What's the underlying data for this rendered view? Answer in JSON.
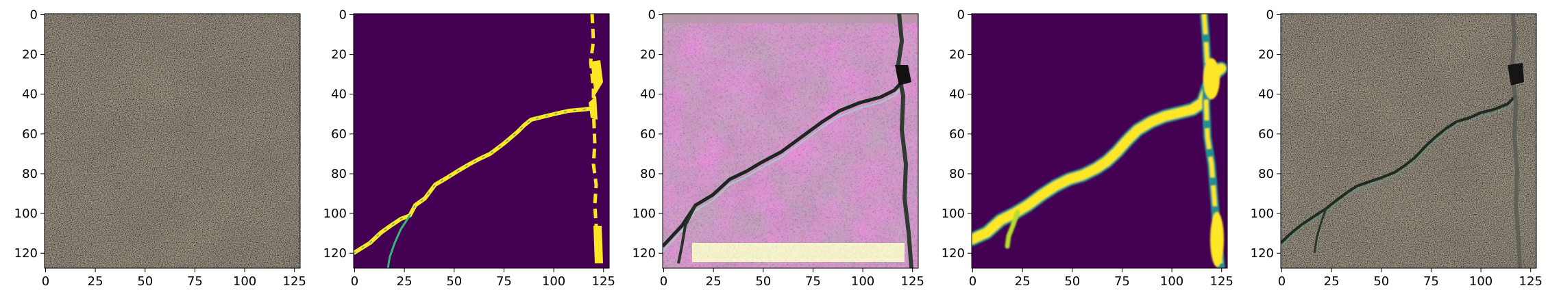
{
  "figure": {
    "panels": [
      {
        "name": "panel-concrete-input",
        "kind": "texture-plain"
      },
      {
        "name": "panel-crack-mask-binary",
        "kind": "mask-binary"
      },
      {
        "name": "panel-synthetic-crack-texture",
        "kind": "texture-synthetic"
      },
      {
        "name": "panel-crack-mask-soft",
        "kind": "mask-soft"
      },
      {
        "name": "panel-concrete-with-crack",
        "kind": "texture-crack"
      }
    ],
    "x_ticks": [
      "0",
      "25",
      "50",
      "75",
      "100",
      "125"
    ],
    "y_ticks": [
      "0",
      "20",
      "40",
      "60",
      "80",
      "100",
      "120"
    ],
    "colors": {
      "mask_background": "#440154",
      "mask_crack": "#fde725",
      "mask_edge": "#35b779",
      "concrete": "#a49c8a"
    }
  }
}
